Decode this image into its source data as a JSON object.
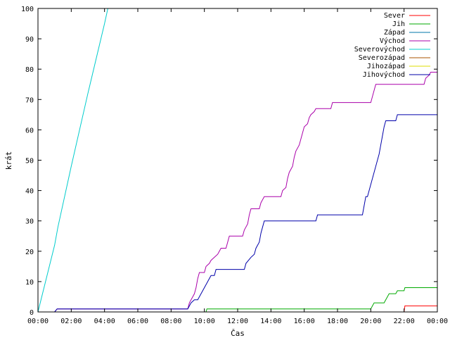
{
  "chart_data": {
    "type": "line",
    "title": "",
    "xlabel": "Čas",
    "ylabel": "krát",
    "xlim": [
      0,
      24
    ],
    "ylim": [
      0,
      100
    ],
    "grid": false,
    "legend_position": "top-right",
    "x_tick_labels": [
      "00:00",
      "02:00",
      "04:00",
      "06:00",
      "08:00",
      "10:00",
      "12:00",
      "14:00",
      "16:00",
      "18:00",
      "20:00",
      "22:00",
      "00:00"
    ],
    "x_tick_values": [
      0,
      2,
      4,
      6,
      8,
      10,
      12,
      14,
      16,
      18,
      20,
      22,
      24
    ],
    "y_tick_values": [
      0,
      10,
      20,
      30,
      40,
      50,
      60,
      70,
      80,
      90,
      100
    ],
    "y_tick_labels": [
      "0",
      "10",
      "20",
      "30",
      "40",
      "50",
      "60",
      "70",
      "80",
      "90",
      "100"
    ],
    "series": [
      {
        "name": "Sever",
        "color": "#ff0000",
        "points": [
          [
            0,
            0
          ],
          [
            22.0,
            0
          ],
          [
            22.05,
            2
          ],
          [
            24,
            2
          ]
        ]
      },
      {
        "name": "Jih",
        "color": "#00aa00",
        "points": [
          [
            0,
            0
          ],
          [
            10.1,
            0
          ],
          [
            10.15,
            1
          ],
          [
            20.0,
            1
          ],
          [
            20.1,
            2
          ],
          [
            20.2,
            3
          ],
          [
            20.8,
            3
          ],
          [
            20.9,
            4
          ],
          [
            21.0,
            5
          ],
          [
            21.1,
            6
          ],
          [
            21.5,
            6
          ],
          [
            21.6,
            7
          ],
          [
            22.0,
            7
          ],
          [
            22.05,
            8
          ],
          [
            24,
            8
          ]
        ]
      },
      {
        "name": "Západ",
        "color": "#0077aa",
        "points": [
          [
            0,
            0
          ],
          [
            24,
            0
          ]
        ]
      },
      {
        "name": "Východ",
        "color": "#aa00aa",
        "points": [
          [
            0,
            0
          ],
          [
            1.0,
            0
          ],
          [
            1.15,
            1
          ],
          [
            9.0,
            1
          ],
          [
            9.1,
            3
          ],
          [
            9.2,
            4
          ],
          [
            9.3,
            5
          ],
          [
            9.4,
            6
          ],
          [
            9.5,
            8
          ],
          [
            9.6,
            11
          ],
          [
            9.7,
            13
          ],
          [
            10.0,
            13
          ],
          [
            10.1,
            15
          ],
          [
            10.3,
            16
          ],
          [
            10.4,
            17
          ],
          [
            10.6,
            18
          ],
          [
            10.8,
            19
          ],
          [
            10.9,
            20
          ],
          [
            11.0,
            21
          ],
          [
            11.3,
            21
          ],
          [
            11.4,
            23
          ],
          [
            11.5,
            25
          ],
          [
            12.3,
            25
          ],
          [
            12.4,
            27
          ],
          [
            12.6,
            29
          ],
          [
            12.7,
            32
          ],
          [
            12.8,
            34
          ],
          [
            13.3,
            34
          ],
          [
            13.4,
            36
          ],
          [
            13.5,
            37
          ],
          [
            13.6,
            38
          ],
          [
            14.6,
            38
          ],
          [
            14.7,
            40
          ],
          [
            14.9,
            41
          ],
          [
            15.0,
            44
          ],
          [
            15.1,
            46
          ],
          [
            15.3,
            48
          ],
          [
            15.4,
            51
          ],
          [
            15.5,
            53
          ],
          [
            15.7,
            55
          ],
          [
            15.8,
            57
          ],
          [
            15.9,
            59
          ],
          [
            16.0,
            61
          ],
          [
            16.2,
            62
          ],
          [
            16.3,
            64
          ],
          [
            16.4,
            65
          ],
          [
            16.6,
            66
          ],
          [
            16.7,
            67
          ],
          [
            17.6,
            67
          ],
          [
            17.7,
            69
          ],
          [
            20.0,
            69
          ],
          [
            20.1,
            71
          ],
          [
            20.2,
            73
          ],
          [
            20.3,
            75
          ],
          [
            23.2,
            75
          ],
          [
            23.3,
            77
          ],
          [
            23.5,
            78
          ],
          [
            23.6,
            79
          ],
          [
            24,
            79
          ]
        ]
      },
      {
        "name": "Severovýchod",
        "color": "#00cccc",
        "points": [
          [
            0,
            0
          ],
          [
            1.0,
            22
          ],
          [
            1.2,
            28
          ],
          [
            2.0,
            48
          ],
          [
            3.0,
            72
          ],
          [
            4.0,
            95
          ],
          [
            4.2,
            100
          ]
        ]
      },
      {
        "name": "Severozápad",
        "color": "#aa5500",
        "points": [
          [
            0,
            0
          ],
          [
            24,
            0
          ]
        ]
      },
      {
        "name": "Jihozápad",
        "color": "#dddd00",
        "points": [
          [
            0,
            0
          ],
          [
            24,
            0
          ]
        ]
      },
      {
        "name": "Jihovýchod",
        "color": "#0000aa",
        "points": [
          [
            0,
            0
          ],
          [
            1.0,
            0
          ],
          [
            1.15,
            1
          ],
          [
            9.0,
            1
          ],
          [
            9.2,
            3
          ],
          [
            9.4,
            4
          ],
          [
            9.6,
            4
          ],
          [
            9.8,
            6
          ],
          [
            10.0,
            8
          ],
          [
            10.2,
            10
          ],
          [
            10.4,
            12
          ],
          [
            10.6,
            12
          ],
          [
            10.7,
            14
          ],
          [
            12.4,
            14
          ],
          [
            12.5,
            16
          ],
          [
            12.8,
            18
          ],
          [
            13.0,
            19
          ],
          [
            13.1,
            21
          ],
          [
            13.3,
            23
          ],
          [
            13.4,
            26
          ],
          [
            13.5,
            28
          ],
          [
            13.6,
            30
          ],
          [
            16.7,
            30
          ],
          [
            16.8,
            32
          ],
          [
            19.5,
            32
          ],
          [
            19.6,
            35
          ],
          [
            19.7,
            38
          ],
          [
            19.8,
            38
          ],
          [
            19.9,
            40
          ],
          [
            20.0,
            42
          ],
          [
            20.1,
            44
          ],
          [
            20.3,
            48
          ],
          [
            20.5,
            52
          ],
          [
            20.6,
            55
          ],
          [
            20.7,
            58
          ],
          [
            20.8,
            61
          ],
          [
            20.9,
            63
          ],
          [
            21.5,
            63
          ],
          [
            21.6,
            65
          ],
          [
            24,
            65
          ]
        ]
      }
    ]
  }
}
